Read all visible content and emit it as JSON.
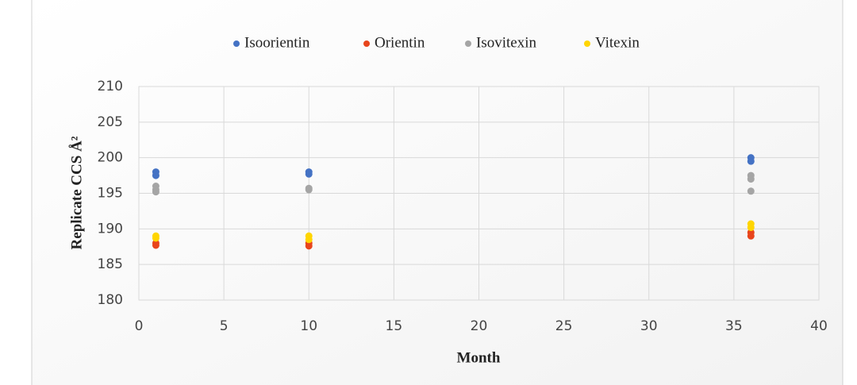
{
  "chart_data": {
    "type": "scatter",
    "x_label": "Month",
    "y_label": "Replicate CCS Å²",
    "xlim": [
      0,
      40
    ],
    "xticks": [
      0,
      5,
      10,
      15,
      20,
      25,
      30,
      35,
      40
    ],
    "ylim": [
      180,
      210
    ],
    "yticks": [
      180,
      185,
      190,
      195,
      200,
      205,
      210
    ],
    "grid": true,
    "legend": "top",
    "series": [
      {
        "name": "Isoorientin",
        "color": "#4472c4",
        "x": [
          1,
          1,
          10,
          10,
          36,
          36
        ],
        "values": [
          198,
          197.5,
          198,
          197.7,
          200,
          199.5
        ]
      },
      {
        "name": "Orientin",
        "color": "#e8451c",
        "x": [
          1,
          1,
          10,
          10,
          36,
          36
        ],
        "values": [
          188,
          187.7,
          188,
          187.6,
          189.5,
          189
        ]
      },
      {
        "name": "Isovitexin",
        "color": "#a5a5a5",
        "x": [
          1,
          1,
          1,
          10,
          10,
          36,
          36,
          36
        ],
        "values": [
          196,
          195.5,
          195.2,
          195.7,
          195.5,
          197.5,
          197,
          195.3
        ]
      },
      {
        "name": "Vitexin",
        "color": "#ffd500",
        "x": [
          1,
          1,
          10,
          10,
          36,
          36
        ],
        "values": [
          189,
          188.7,
          189,
          188.5,
          190.7,
          190.2
        ]
      }
    ]
  }
}
